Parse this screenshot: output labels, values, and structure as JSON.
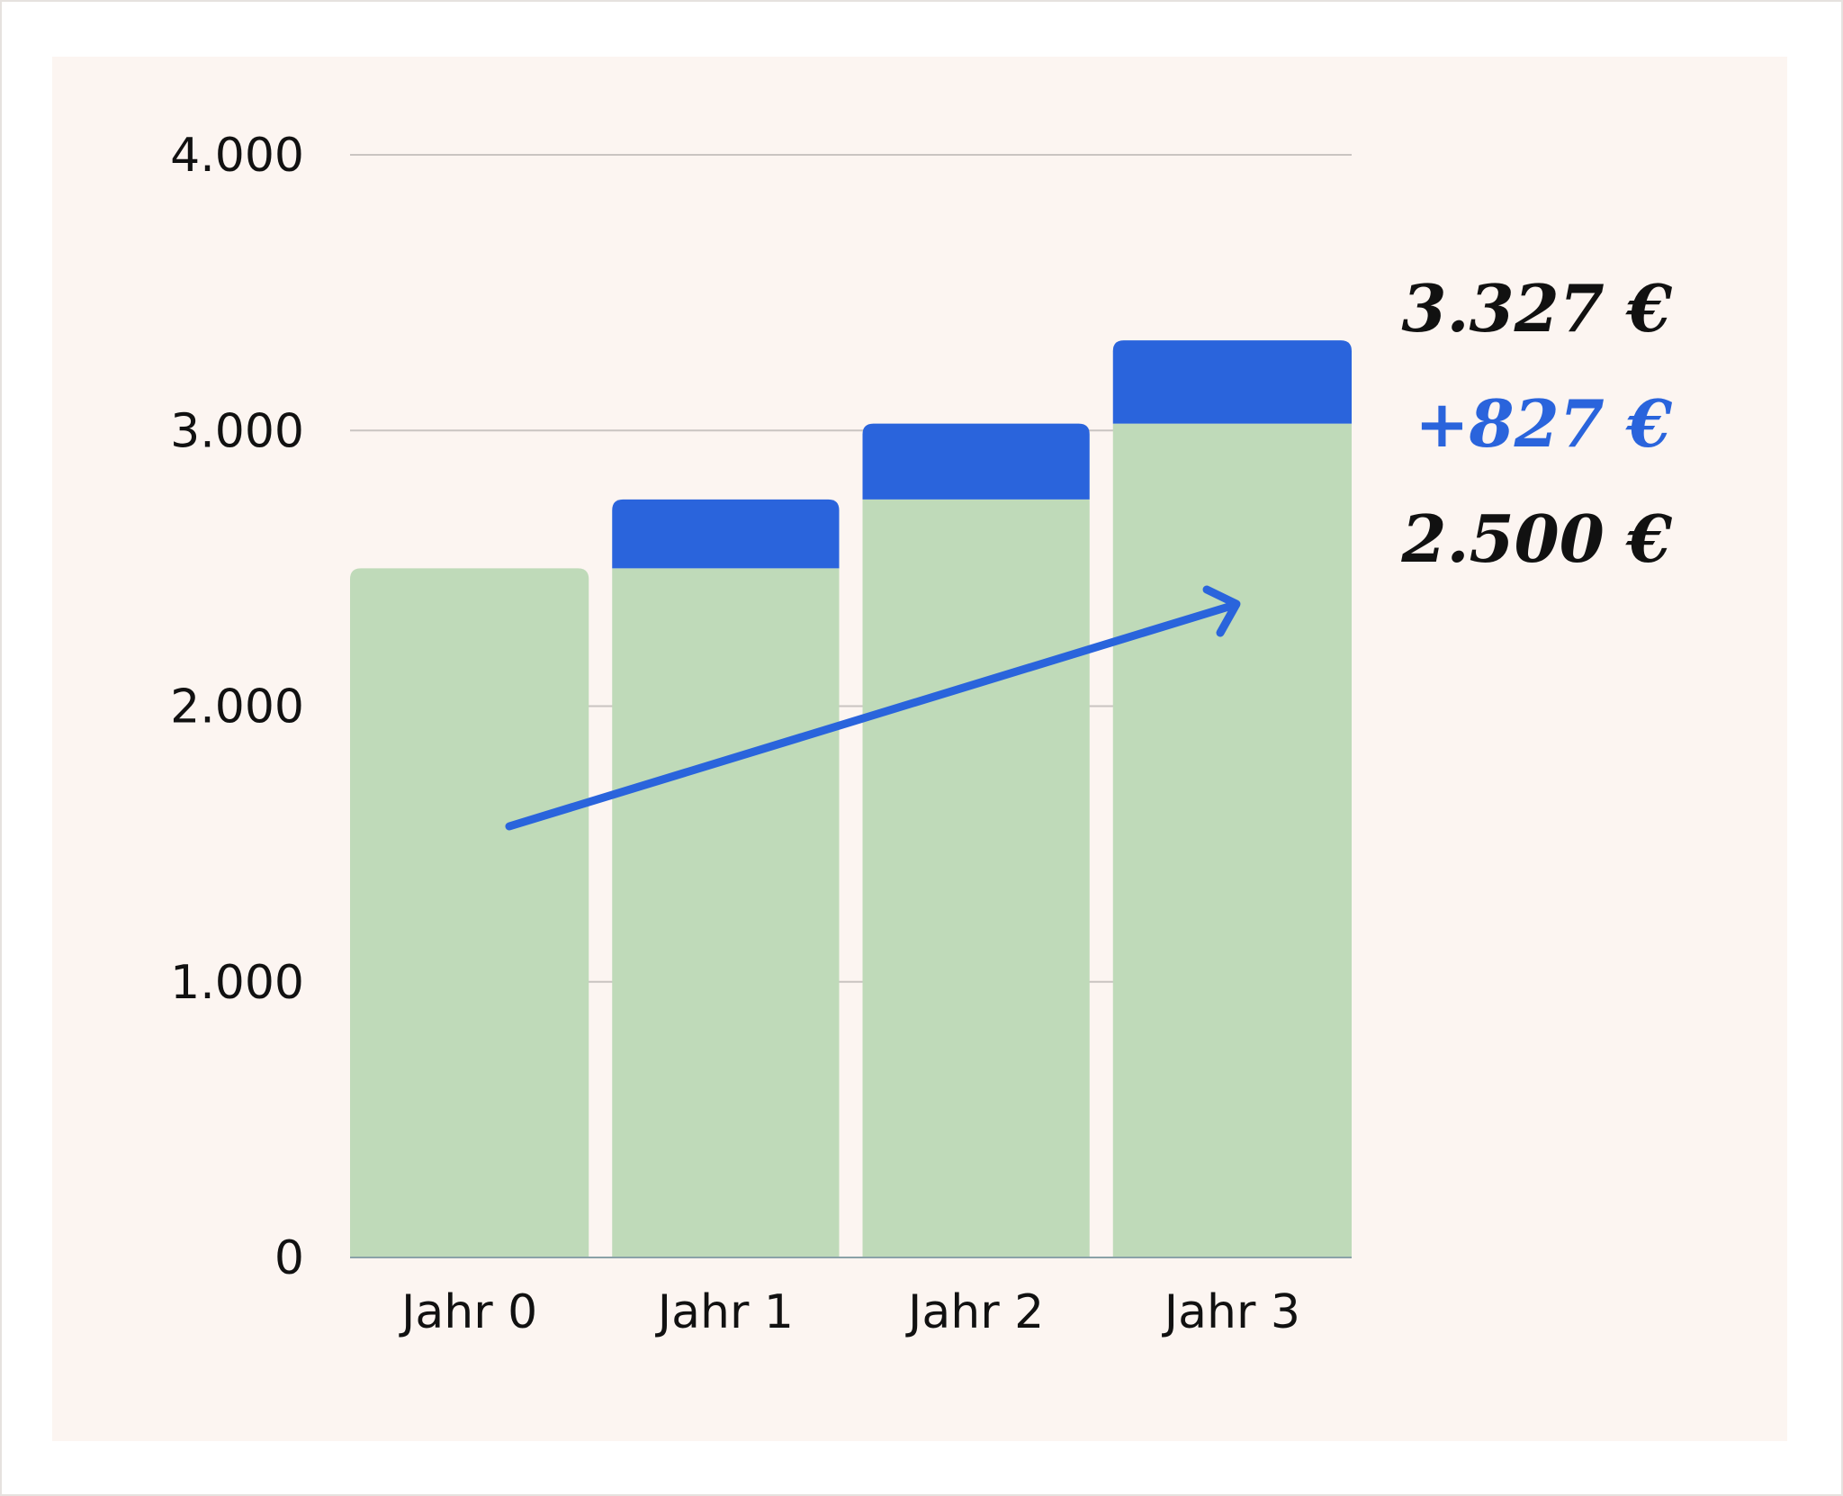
{
  "chart_data": {
    "type": "bar",
    "stacked": true,
    "categories": [
      "Jahr 0",
      "Jahr 1",
      "Jahr 2",
      "Jahr 3"
    ],
    "series": [
      {
        "values": [
          2500,
          2500,
          2750,
          3025
        ],
        "color": "#bfdab9"
      },
      {
        "values": [
          0,
          250,
          275,
          302
        ],
        "color": "#2a64dc"
      }
    ],
    "ylim": [
      0,
      4000
    ],
    "yticks": [
      {
        "value": 0,
        "label": "0"
      },
      {
        "value": 1000,
        "label": "1.000"
      },
      {
        "value": 2000,
        "label": "2.000"
      },
      {
        "value": 3000,
        "label": "3.000"
      },
      {
        "value": 4000,
        "label": "4.000"
      }
    ],
    "grid": true,
    "annotations": [
      {
        "text": "3.327 €",
        "color": "#111111"
      },
      {
        "text": "+827 €",
        "color": "#2a64dc"
      },
      {
        "text": "2.500 €",
        "color": "#111111"
      }
    ],
    "trend_arrow": {
      "color": "#2a64dc"
    }
  }
}
